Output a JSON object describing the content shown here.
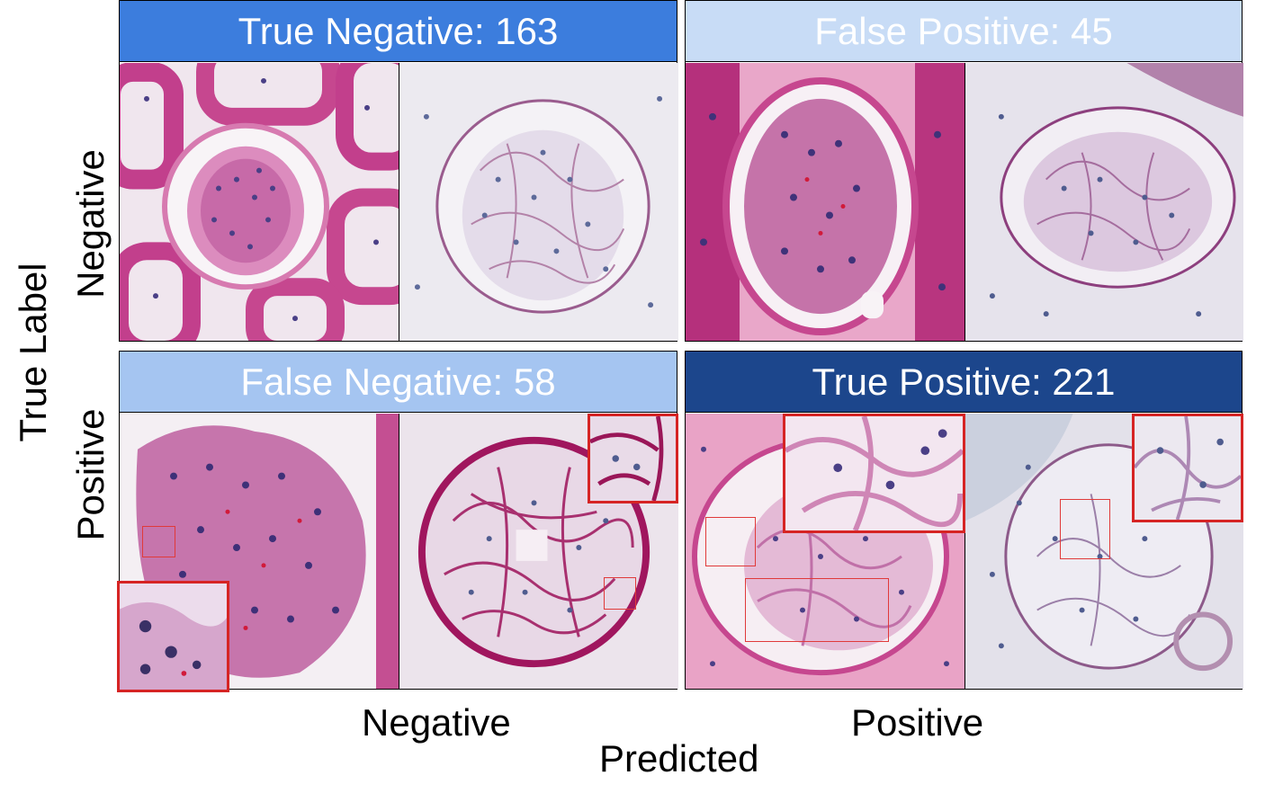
{
  "y_axis": {
    "title": "True Label",
    "rows": [
      "Negative",
      "Positive"
    ]
  },
  "x_axis": {
    "title": "Predicted",
    "cols": [
      "Negative",
      "Positive"
    ]
  },
  "quadrants": {
    "tn": {
      "label": "True Negative: 163",
      "count": 163,
      "header_bg": "#3c7ddd",
      "header_fg": "#ffffff"
    },
    "fp": {
      "label": "False Positive: 45",
      "count": 45,
      "header_bg": "#c8dcf6",
      "header_fg": "#ffffff"
    },
    "fn": {
      "label": "False Negative: 58",
      "count": 58,
      "header_bg": "#a5c5f1",
      "header_fg": "#ffffff"
    },
    "tp": {
      "label": "True Positive: 221",
      "count": 221,
      "header_bg": "#1c468c",
      "header_fg": "#ffffff"
    }
  },
  "colors": {
    "stain_pink": "#d4609e",
    "stain_dark": "#b43a82",
    "nuclei": "#4a3f86",
    "pale_tissue": "#eaeaf0",
    "highlight_box": "#d62424"
  }
}
